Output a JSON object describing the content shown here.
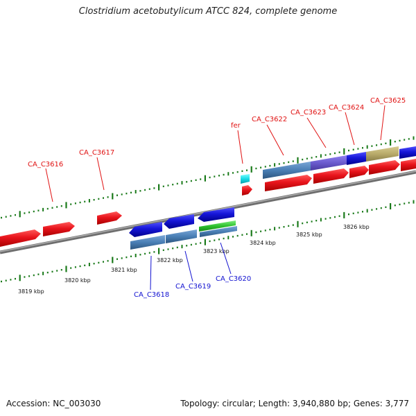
{
  "title": "Clostridium acetobutylicum ATCC 824, complete genome",
  "footer": {
    "accession": "Accession: NC_003030",
    "topology": "Topology: circular; Length: 3,940,880 bp; Genes: 3,777"
  },
  "colors": {
    "forward_gene": "#e8141c",
    "reverse_gene": "#1616d8",
    "rna_gene": "#16dce6",
    "blue_feature": "#4a7fb5",
    "purple_feature": "#6a5acd",
    "khaki_feature": "#b8aa6a",
    "green_feature": "#2ec02e",
    "forward_label": "#e01010",
    "reverse_label": "#1010d0",
    "ticks": "#1a7a1a",
    "backbone": "#8a8a8a"
  },
  "scale_labels": [
    "3819 kbp",
    "3820 kbp",
    "3821 kbp",
    "3822 kbp",
    "3823 kbp",
    "3824 kbp",
    "3825 kbp",
    "3826 kbp"
  ],
  "gene_labels": [
    {
      "text": "CA_C3616",
      "strand": "forward"
    },
    {
      "text": "CA_C3617",
      "strand": "forward"
    },
    {
      "text": "fer",
      "strand": "forward"
    },
    {
      "text": "CA_C3622",
      "strand": "forward"
    },
    {
      "text": "CA_C3623",
      "strand": "forward"
    },
    {
      "text": "CA_C3624",
      "strand": "forward"
    },
    {
      "text": "CA_C3625",
      "strand": "forward"
    },
    {
      "text": "CA_C3618",
      "strand": "reverse"
    },
    {
      "text": "CA_C3619",
      "strand": "reverse"
    },
    {
      "text": "CA_C3620",
      "strand": "reverse"
    }
  ]
}
